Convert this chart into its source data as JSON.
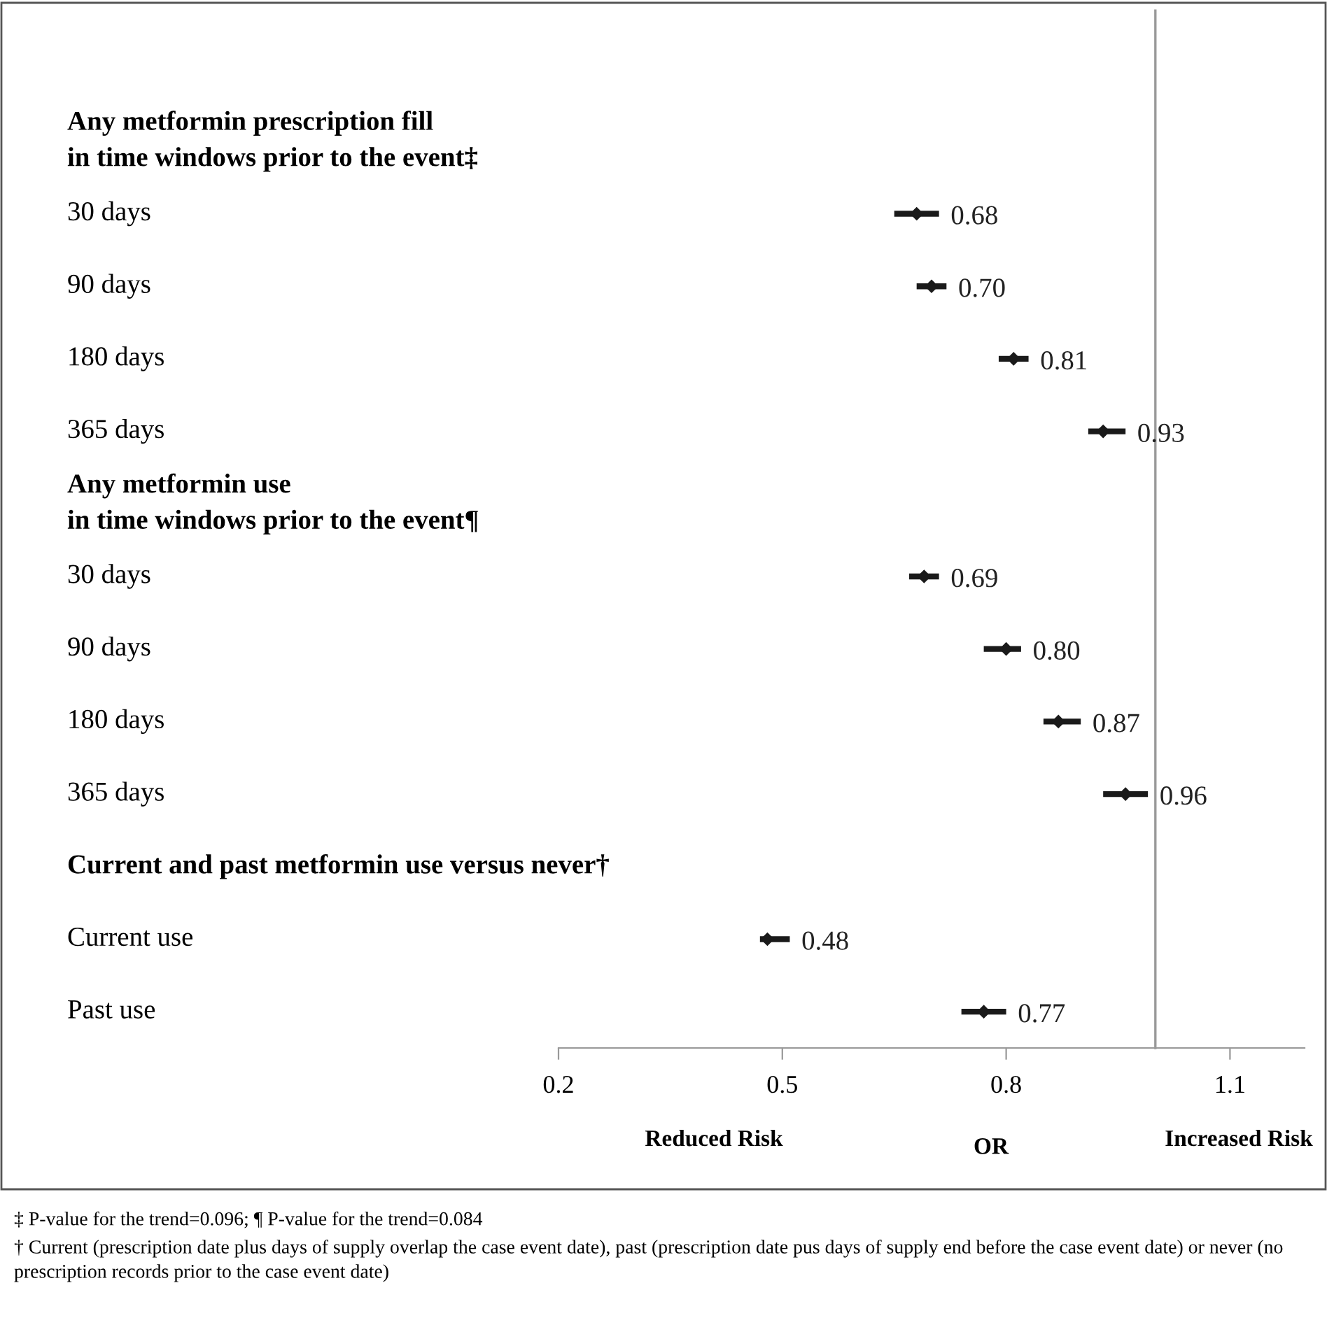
{
  "chart_data": {
    "type": "scatter",
    "orientation": "horizontal",
    "xlabel": "OR",
    "categories": [
      "Any metformin prescription fill\nin time windows prior to the event‡",
      "30 days",
      "90 days",
      "180 days",
      "365 days",
      "Any metformin use\nin time windows prior to the event¶",
      "30 days",
      "90 days",
      "180 days",
      "365 days",
      "Current and past metformin use versus never†",
      "Current use",
      "Past use"
    ],
    "values": [
      null,
      0.68,
      0.7,
      0.81,
      0.93,
      null,
      0.69,
      0.8,
      0.87,
      0.96,
      null,
      0.48,
      0.77
    ],
    "errors": [
      null,
      [
        0.65,
        0.71
      ],
      [
        0.68,
        0.72
      ],
      [
        0.79,
        0.83
      ],
      [
        0.91,
        0.96
      ],
      null,
      [
        0.67,
        0.71
      ],
      [
        0.77,
        0.82
      ],
      [
        0.85,
        0.9
      ],
      [
        0.93,
        0.99
      ],
      null,
      [
        0.47,
        0.51
      ],
      [
        0.74,
        0.8
      ]
    ],
    "value_labels": [
      null,
      "0.68",
      "0.70",
      "0.81",
      "0.93",
      null,
      "0.69",
      "0.80",
      "0.87",
      "0.96",
      null,
      "0.48",
      "0.77"
    ],
    "color": "#1a1a1a",
    "marker": "diamond",
    "xlim": [
      0.2,
      1.2
    ],
    "xticks": [
      0.2,
      0.5,
      0.8,
      1.1
    ],
    "ref_lines": [
      {
        "axis": "x",
        "value": 1.0,
        "color": "#999999"
      }
    ],
    "tick_labels": "x",
    "grid": false,
    "annotations": [
      "Reduced Risk",
      "Increased Risk",
      "‡ P-value for the trend=0.096; ¶ P-value for the trend=0.084",
      "† Current (prescription date plus days of supply overlap the case event date), past (prescription date pus days of supply end before the case event date) or never (no prescription records prior to the case event date)"
    ]
  }
}
